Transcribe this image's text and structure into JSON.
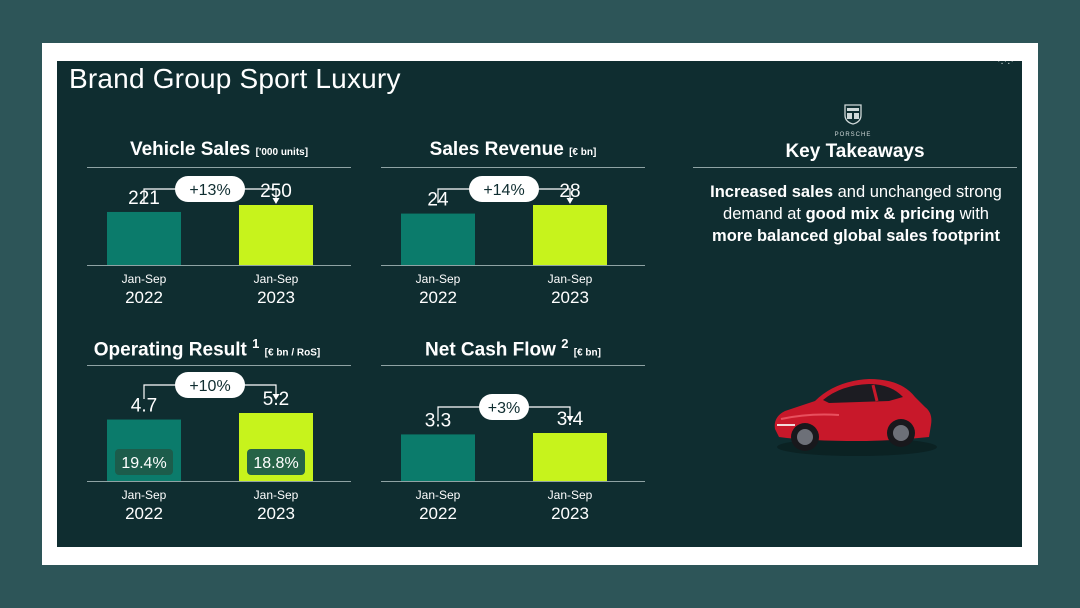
{
  "slide": {
    "title": "Brand Group Sport Luxury",
    "corner_mark": "·:·:·"
  },
  "chart_data": [
    {
      "type": "bar",
      "title": "Vehicle Sales",
      "unit": "['000 units]",
      "categories": [
        [
          "Jan-Sep",
          "2022"
        ],
        [
          "Jan-Sep",
          "2023"
        ]
      ],
      "values": [
        221,
        250
      ],
      "value_labels": [
        "221",
        "250"
      ],
      "change_label": "+13%"
    },
    {
      "type": "bar",
      "title": "Sales Revenue",
      "unit": "[€ bn]",
      "categories": [
        [
          "Jan-Sep",
          "2022"
        ],
        [
          "Jan-Sep",
          "2023"
        ]
      ],
      "values": [
        24,
        28
      ],
      "value_labels": [
        "24",
        "28"
      ],
      "change_label": "+14%"
    },
    {
      "type": "bar",
      "title": "Operating Result",
      "footnote": "1",
      "unit": "[€ bn / RoS]",
      "categories": [
        [
          "Jan-Sep",
          "2022"
        ],
        [
          "Jan-Sep",
          "2023"
        ]
      ],
      "values": [
        4.7,
        5.2
      ],
      "value_labels": [
        "4.7",
        "5.2"
      ],
      "ros_labels": [
        "19.4%",
        "18.8%"
      ],
      "change_label": "+10%"
    },
    {
      "type": "bar",
      "title": "Net Cash Flow",
      "footnote": "2",
      "unit": "[€ bn]",
      "categories": [
        [
          "Jan-Sep",
          "2022"
        ],
        [
          "Jan-Sep",
          "2023"
        ]
      ],
      "values": [
        3.3,
        3.4
      ],
      "value_labels": [
        "3.3",
        "3.4"
      ],
      "change_label": "+3%"
    }
  ],
  "colors": {
    "prior_year": "#0b7b6b",
    "current_year": "#c7f31c",
    "background": "#0f2d30"
  },
  "takeaways": {
    "logo_text": "PORSCHE",
    "title": "Key Takeaways",
    "parts": [
      {
        "text": "Increased sales",
        "bold": true
      },
      {
        "text": " and unchanged strong demand at ",
        "bold": false
      },
      {
        "text": "good mix &",
        "bold": true
      },
      {
        "text": " ",
        "bold": false
      },
      {
        "text": "pricing",
        "bold": true
      },
      {
        "text": " with ",
        "bold": false
      },
      {
        "text": "more balanced global sales footprint",
        "bold": true
      }
    ]
  },
  "icons": {
    "logo": "porsche-crest-icon",
    "car": "red-sports-car-image"
  }
}
